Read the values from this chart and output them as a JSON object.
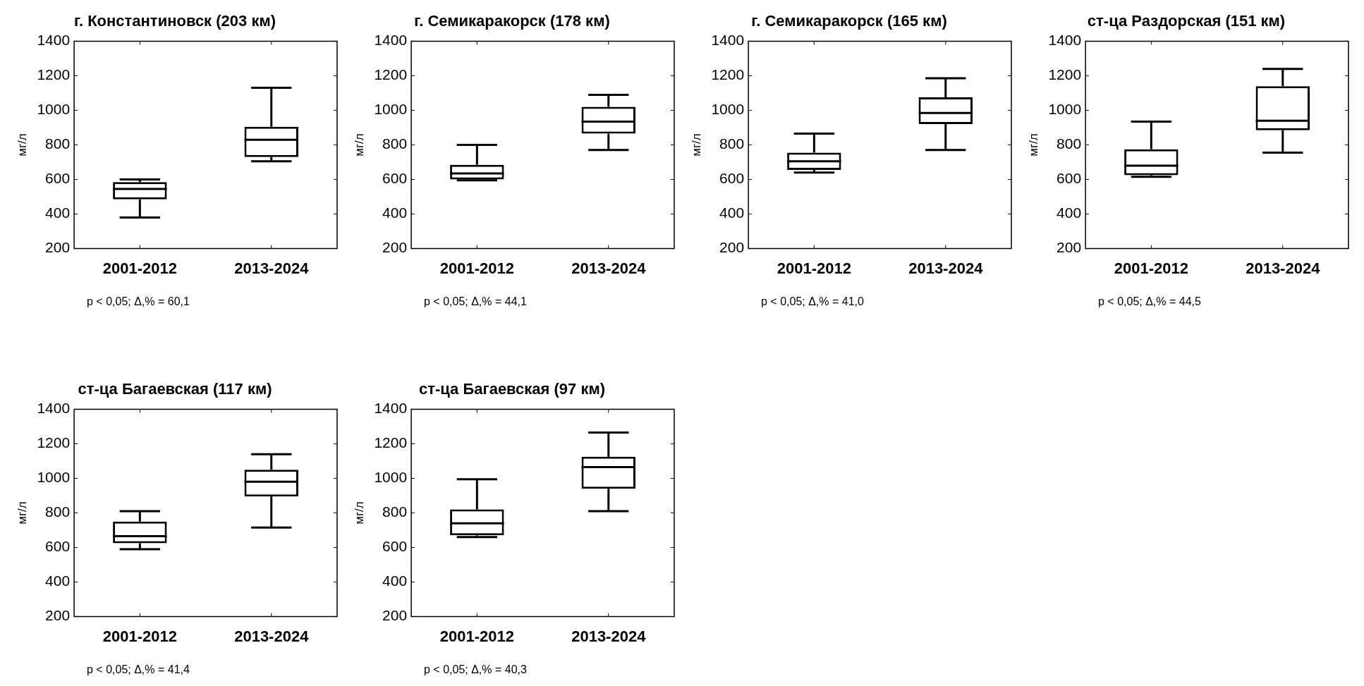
{
  "chart_data": [
    {
      "type": "box",
      "title": "г. Константиновск (203 км)",
      "ylabel": "мг/л",
      "categories": [
        "2001-2012",
        "2013-2024"
      ],
      "color": "#000000",
      "boxes": [
        {
          "low": 380,
          "q1": 485,
          "median": 545,
          "q3": 585,
          "high": 600
        },
        {
          "low": 705,
          "q1": 730,
          "median": 830,
          "q3": 905,
          "high": 1130
        }
      ],
      "ylim": [
        200,
        1400
      ],
      "yticks": [
        200,
        400,
        600,
        800,
        1000,
        1200,
        1400
      ],
      "annotations": [
        "p < 0,05; Δ,% = 60,1"
      ]
    },
    {
      "type": "box",
      "title": "г. Семикаракорск (178 км)",
      "ylabel": "мг/л",
      "categories": [
        "2001-2012",
        "2013-2024"
      ],
      "color": "#000000",
      "boxes": [
        {
          "low": 595,
          "q1": 600,
          "median": 635,
          "q3": 685,
          "high": 800
        },
        {
          "low": 770,
          "q1": 865,
          "median": 935,
          "q3": 1020,
          "high": 1090
        }
      ],
      "ylim": [
        200,
        1400
      ],
      "yticks": [
        200,
        400,
        600,
        800,
        1000,
        1200,
        1400
      ],
      "annotations": [
        "p < 0,05; Δ,% = 44,1"
      ]
    },
    {
      "type": "box",
      "title": "г. Семикаракорск (165 км)",
      "ylabel": "мг/л",
      "categories": [
        "2001-2012",
        "2013-2024"
      ],
      "color": "#000000",
      "boxes": [
        {
          "low": 640,
          "q1": 655,
          "median": 705,
          "q3": 755,
          "high": 865
        },
        {
          "low": 770,
          "q1": 920,
          "median": 985,
          "q3": 1075,
          "high": 1185
        }
      ],
      "ylim": [
        200,
        1400
      ],
      "yticks": [
        200,
        400,
        600,
        800,
        1000,
        1200,
        1400
      ],
      "annotations": [
        "p < 0,05; Δ,% = 41,0"
      ]
    },
    {
      "type": "box",
      "title": "ст-ца Раздорская (151 км)",
      "ylabel": "мг/л",
      "categories": [
        "2001-2012",
        "2013-2024"
      ],
      "color": "#000000",
      "boxes": [
        {
          "low": 615,
          "q1": 625,
          "median": 680,
          "q3": 775,
          "high": 935
        },
        {
          "low": 755,
          "q1": 885,
          "median": 940,
          "q3": 1140,
          "high": 1240
        }
      ],
      "ylim": [
        200,
        1400
      ],
      "yticks": [
        200,
        400,
        600,
        800,
        1000,
        1200,
        1400
      ],
      "annotations": [
        "p < 0,05; Δ,% = 44,5"
      ]
    },
    {
      "type": "box",
      "title": "ст-ца Багаевская (117 км)",
      "ylabel": "мг/л",
      "categories": [
        "2001-2012",
        "2013-2024"
      ],
      "color": "#000000",
      "boxes": [
        {
          "low": 590,
          "q1": 625,
          "median": 665,
          "q3": 750,
          "high": 810
        },
        {
          "low": 715,
          "q1": 895,
          "median": 980,
          "q3": 1050,
          "high": 1140
        }
      ],
      "ylim": [
        200,
        1400
      ],
      "yticks": [
        200,
        400,
        600,
        800,
        1000,
        1200,
        1400
      ],
      "annotations": [
        "p < 0,05; Δ,% = 41,4"
      ]
    },
    {
      "type": "box",
      "title": "ст-ца Багаевская (97 км)",
      "ylabel": "мг/л",
      "categories": [
        "2001-2012",
        "2013-2024"
      ],
      "color": "#000000",
      "boxes": [
        {
          "low": 660,
          "q1": 670,
          "median": 740,
          "q3": 820,
          "high": 995
        },
        {
          "low": 810,
          "q1": 940,
          "median": 1065,
          "q3": 1125,
          "high": 1265
        }
      ],
      "ylim": [
        200,
        1400
      ],
      "yticks": [
        200,
        400,
        600,
        800,
        1000,
        1200,
        1400
      ],
      "annotations": [
        "p < 0,05; Δ,% = 40,3"
      ]
    }
  ]
}
